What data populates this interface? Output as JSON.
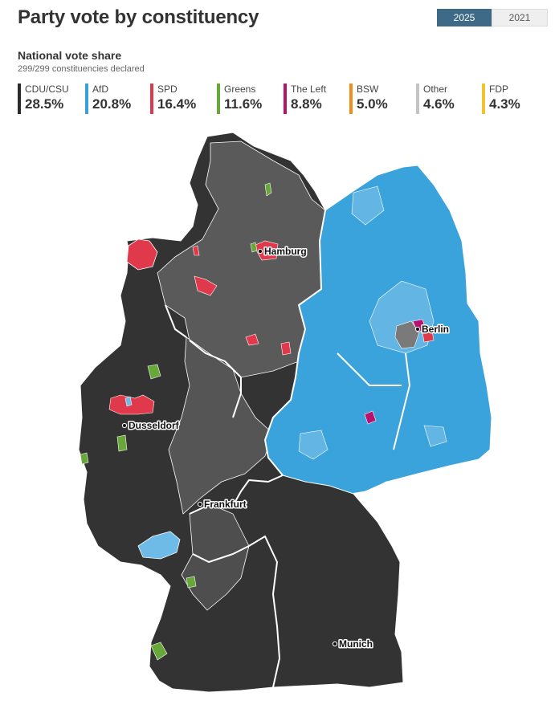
{
  "header": {
    "title": "Party vote by constituency"
  },
  "year_toggle": {
    "options": [
      {
        "label": "2025",
        "selected": true
      },
      {
        "label": "2021",
        "selected": false
      }
    ]
  },
  "summary": {
    "title": "National vote share",
    "declared": "299/299 constituencies declared"
  },
  "parties": [
    {
      "name": "CDU/CSU",
      "share": "28.5%",
      "color": "#2b2b2b"
    },
    {
      "name": "AfD",
      "share": "20.8%",
      "color": "#3aa0da"
    },
    {
      "name": "SPD",
      "share": "16.4%",
      "color": "#e0394b"
    },
    {
      "name": "Greens",
      "share": "11.6%",
      "color": "#68a839"
    },
    {
      "name": "The Left",
      "share": "8.8%",
      "color": "#b8126d"
    },
    {
      "name": "BSW",
      "share": "5.0%",
      "color": "#f28c1a"
    },
    {
      "name": "Other",
      "share": "4.6%",
      "color": "#c4c4c4"
    },
    {
      "name": "FDP",
      "share": "4.3%",
      "color": "#f2c230"
    }
  ],
  "map": {
    "cities": [
      {
        "name": "Hamburg"
      },
      {
        "name": "Berlin"
      },
      {
        "name": "Dusseldorf"
      },
      {
        "name": "Frankfurt"
      },
      {
        "name": "Munich"
      }
    ],
    "region_colors": {
      "cdu_dark": "#333333",
      "cdu_mid": "#5a5a5a",
      "afd": "#3ba3dc",
      "afd_light": "#63b6e4"
    }
  }
}
